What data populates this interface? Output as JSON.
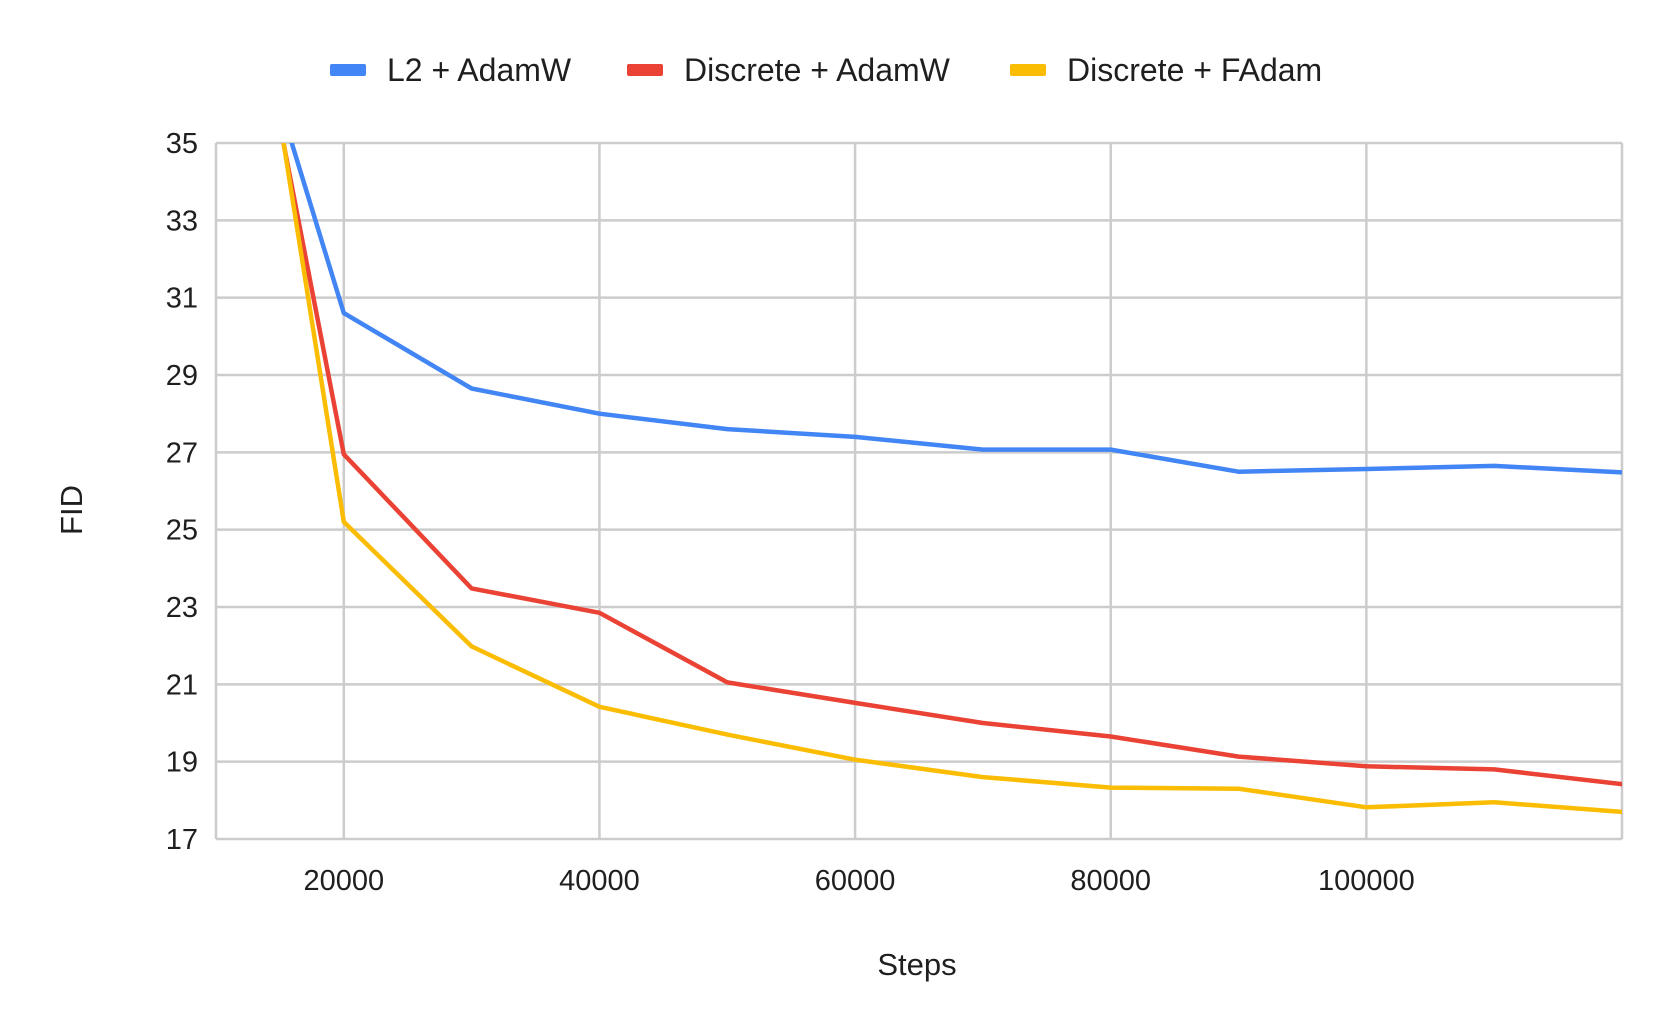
{
  "chart_data": {
    "type": "line",
    "title": "",
    "xlabel": "Steps",
    "ylabel": "FID",
    "xlim": [
      10000,
      120000
    ],
    "ylim": [
      17,
      35
    ],
    "xticks": [
      20000,
      40000,
      60000,
      80000,
      100000
    ],
    "yticks": [
      17,
      19,
      21,
      23,
      25,
      27,
      29,
      31,
      33,
      35
    ],
    "grid": true,
    "legend_position": "top",
    "series": [
      {
        "name": "L2 + AdamW",
        "color": "#4285f4",
        "x": [
          15000,
          20000,
          30000,
          40000,
          50000,
          60000,
          70000,
          80000,
          90000,
          100000,
          110000,
          120000
        ],
        "values": [
          36.0,
          30.6,
          28.65,
          28.0,
          27.6,
          27.4,
          27.07,
          27.07,
          26.5,
          26.57,
          26.65,
          26.48
        ]
      },
      {
        "name": "Discrete + AdamW",
        "color": "#ea4335",
        "x": [
          10000,
          20000,
          30000,
          40000,
          50000,
          60000,
          70000,
          80000,
          90000,
          100000,
          110000,
          120000
        ],
        "values": [
          44.0,
          26.95,
          23.48,
          22.85,
          21.05,
          20.52,
          20.0,
          19.65,
          19.13,
          18.88,
          18.8,
          18.42
        ]
      },
      {
        "name": "Discrete + FAdam",
        "color": "#fbbc04",
        "x": [
          10000,
          20000,
          30000,
          40000,
          50000,
          60000,
          70000,
          80000,
          90000,
          100000,
          110000,
          120000
        ],
        "values": [
          46.0,
          25.2,
          21.98,
          20.42,
          19.7,
          19.05,
          18.6,
          18.33,
          18.3,
          17.82,
          17.95,
          17.7
        ]
      }
    ]
  }
}
